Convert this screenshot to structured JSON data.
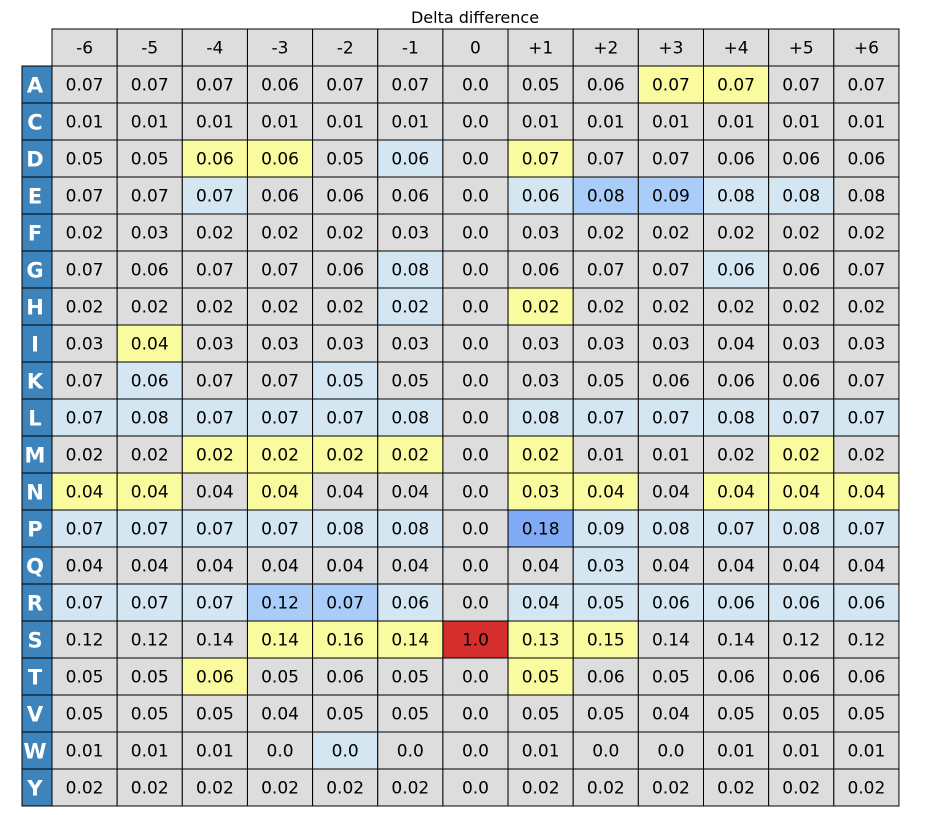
{
  "chart_data": {
    "type": "heatmap",
    "title": "Delta difference",
    "xlabel": "",
    "ylabel": "",
    "columns": [
      "-6",
      "-5",
      "-4",
      "-3",
      "-2",
      "-1",
      "0",
      "+1",
      "+2",
      "+3",
      "+4",
      "+5",
      "+6"
    ],
    "rows": [
      "A",
      "C",
      "D",
      "E",
      "F",
      "G",
      "H",
      "I",
      "K",
      "L",
      "M",
      "N",
      "P",
      "Q",
      "R",
      "S",
      "T",
      "V",
      "W",
      "Y"
    ],
    "values": [
      [
        "0.07",
        "0.07",
        "0.07",
        "0.06",
        "0.07",
        "0.07",
        "0.0",
        "0.05",
        "0.06",
        "0.07",
        "0.07",
        "0.07",
        "0.07"
      ],
      [
        "0.01",
        "0.01",
        "0.01",
        "0.01",
        "0.01",
        "0.01",
        "0.0",
        "0.01",
        "0.01",
        "0.01",
        "0.01",
        "0.01",
        "0.01"
      ],
      [
        "0.05",
        "0.05",
        "0.06",
        "0.06",
        "0.05",
        "0.06",
        "0.0",
        "0.07",
        "0.07",
        "0.07",
        "0.06",
        "0.06",
        "0.06"
      ],
      [
        "0.07",
        "0.07",
        "0.07",
        "0.06",
        "0.06",
        "0.06",
        "0.0",
        "0.06",
        "0.08",
        "0.09",
        "0.08",
        "0.08",
        "0.08"
      ],
      [
        "0.02",
        "0.03",
        "0.02",
        "0.02",
        "0.02",
        "0.03",
        "0.0",
        "0.03",
        "0.02",
        "0.02",
        "0.02",
        "0.02",
        "0.02"
      ],
      [
        "0.07",
        "0.06",
        "0.07",
        "0.07",
        "0.06",
        "0.08",
        "0.0",
        "0.06",
        "0.07",
        "0.07",
        "0.06",
        "0.06",
        "0.07"
      ],
      [
        "0.02",
        "0.02",
        "0.02",
        "0.02",
        "0.02",
        "0.02",
        "0.0",
        "0.02",
        "0.02",
        "0.02",
        "0.02",
        "0.02",
        "0.02"
      ],
      [
        "0.03",
        "0.04",
        "0.03",
        "0.03",
        "0.03",
        "0.03",
        "0.0",
        "0.03",
        "0.03",
        "0.03",
        "0.04",
        "0.03",
        "0.03"
      ],
      [
        "0.07",
        "0.06",
        "0.07",
        "0.07",
        "0.05",
        "0.05",
        "0.0",
        "0.03",
        "0.05",
        "0.06",
        "0.06",
        "0.06",
        "0.07"
      ],
      [
        "0.07",
        "0.08",
        "0.07",
        "0.07",
        "0.07",
        "0.08",
        "0.0",
        "0.08",
        "0.07",
        "0.07",
        "0.08",
        "0.07",
        "0.07"
      ],
      [
        "0.02",
        "0.02",
        "0.02",
        "0.02",
        "0.02",
        "0.02",
        "0.0",
        "0.02",
        "0.01",
        "0.01",
        "0.02",
        "0.02",
        "0.02"
      ],
      [
        "0.04",
        "0.04",
        "0.04",
        "0.04",
        "0.04",
        "0.04",
        "0.0",
        "0.03",
        "0.04",
        "0.04",
        "0.04",
        "0.04",
        "0.04"
      ],
      [
        "0.07",
        "0.07",
        "0.07",
        "0.07",
        "0.08",
        "0.08",
        "0.0",
        "0.18",
        "0.09",
        "0.08",
        "0.07",
        "0.08",
        "0.07"
      ],
      [
        "0.04",
        "0.04",
        "0.04",
        "0.04",
        "0.04",
        "0.04",
        "0.0",
        "0.04",
        "0.03",
        "0.04",
        "0.04",
        "0.04",
        "0.04"
      ],
      [
        "0.07",
        "0.07",
        "0.07",
        "0.12",
        "0.07",
        "0.06",
        "0.0",
        "0.04",
        "0.05",
        "0.06",
        "0.06",
        "0.06",
        "0.06"
      ],
      [
        "0.12",
        "0.12",
        "0.14",
        "0.14",
        "0.16",
        "0.14",
        "1.0",
        "0.13",
        "0.15",
        "0.14",
        "0.14",
        "0.12",
        "0.12"
      ],
      [
        "0.05",
        "0.05",
        "0.06",
        "0.05",
        "0.06",
        "0.05",
        "0.0",
        "0.05",
        "0.06",
        "0.05",
        "0.06",
        "0.06",
        "0.06"
      ],
      [
        "0.05",
        "0.05",
        "0.05",
        "0.04",
        "0.05",
        "0.05",
        "0.0",
        "0.05",
        "0.05",
        "0.04",
        "0.05",
        "0.05",
        "0.05"
      ],
      [
        "0.01",
        "0.01",
        "0.01",
        "0.0",
        "0.0",
        "0.0",
        "0.0",
        "0.01",
        "0.0",
        "0.0",
        "0.01",
        "0.01",
        "0.01"
      ],
      [
        "0.02",
        "0.02",
        "0.02",
        "0.02",
        "0.02",
        "0.02",
        "0.0",
        "0.02",
        "0.02",
        "0.02",
        "0.02",
        "0.02",
        "0.02"
      ]
    ],
    "cell_colors": [
      [
        "g",
        "g",
        "g",
        "g",
        "g",
        "g",
        "g",
        "g",
        "g",
        "y",
        "y",
        "g",
        "g"
      ],
      [
        "g",
        "g",
        "g",
        "g",
        "g",
        "g",
        "g",
        "g",
        "g",
        "g",
        "g",
        "g",
        "g"
      ],
      [
        "g",
        "g",
        "y",
        "y",
        "g",
        "l",
        "g",
        "y",
        "g",
        "g",
        "g",
        "g",
        "g"
      ],
      [
        "g",
        "g",
        "l",
        "g",
        "g",
        "g",
        "g",
        "l",
        "b",
        "b",
        "l",
        "l",
        "g"
      ],
      [
        "g",
        "g",
        "g",
        "g",
        "g",
        "g",
        "g",
        "g",
        "g",
        "g",
        "g",
        "g",
        "g"
      ],
      [
        "g",
        "g",
        "g",
        "g",
        "g",
        "l",
        "g",
        "g",
        "g",
        "g",
        "l",
        "g",
        "g"
      ],
      [
        "g",
        "g",
        "g",
        "g",
        "g",
        "l",
        "g",
        "y",
        "g",
        "g",
        "g",
        "g",
        "g"
      ],
      [
        "g",
        "y",
        "g",
        "g",
        "g",
        "g",
        "g",
        "g",
        "g",
        "g",
        "g",
        "g",
        "g"
      ],
      [
        "g",
        "l",
        "g",
        "g",
        "l",
        "g",
        "g",
        "g",
        "g",
        "g",
        "g",
        "g",
        "g"
      ],
      [
        "l",
        "l",
        "l",
        "l",
        "l",
        "l",
        "g",
        "l",
        "l",
        "l",
        "l",
        "l",
        "l"
      ],
      [
        "g",
        "g",
        "y",
        "y",
        "y",
        "y",
        "g",
        "y",
        "g",
        "g",
        "g",
        "y",
        "g"
      ],
      [
        "y",
        "y",
        "g",
        "y",
        "g",
        "g",
        "g",
        "y",
        "y",
        "g",
        "y",
        "y",
        "y"
      ],
      [
        "l",
        "l",
        "l",
        "l",
        "l",
        "l",
        "g",
        "m",
        "l",
        "l",
        "l",
        "l",
        "l"
      ],
      [
        "g",
        "g",
        "g",
        "g",
        "g",
        "g",
        "g",
        "g",
        "l",
        "g",
        "g",
        "g",
        "g"
      ],
      [
        "l",
        "l",
        "l",
        "b",
        "b",
        "l",
        "g",
        "l",
        "l",
        "l",
        "l",
        "l",
        "l"
      ],
      [
        "g",
        "g",
        "g",
        "y",
        "y",
        "y",
        "r",
        "y",
        "y",
        "g",
        "g",
        "g",
        "g"
      ],
      [
        "g",
        "g",
        "y",
        "g",
        "g",
        "g",
        "g",
        "y",
        "g",
        "g",
        "g",
        "g",
        "g"
      ],
      [
        "g",
        "g",
        "g",
        "g",
        "g",
        "g",
        "g",
        "g",
        "g",
        "g",
        "g",
        "g",
        "g"
      ],
      [
        "g",
        "g",
        "g",
        "g",
        "l",
        "g",
        "g",
        "g",
        "g",
        "g",
        "g",
        "g",
        "g"
      ],
      [
        "g",
        "g",
        "g",
        "g",
        "g",
        "g",
        "g",
        "g",
        "g",
        "g",
        "g",
        "g",
        "g"
      ]
    ],
    "palette": {
      "g": "#dddddd",
      "y": "#fafa9e",
      "l": "#d4e6f2",
      "b": "#a9cdf8",
      "m": "#80aaf5",
      "r": "#d62d2d"
    },
    "row_label_color": "#3d84bc",
    "row_label_text_color": "#ffffff",
    "grid_line_color": "#000000"
  }
}
